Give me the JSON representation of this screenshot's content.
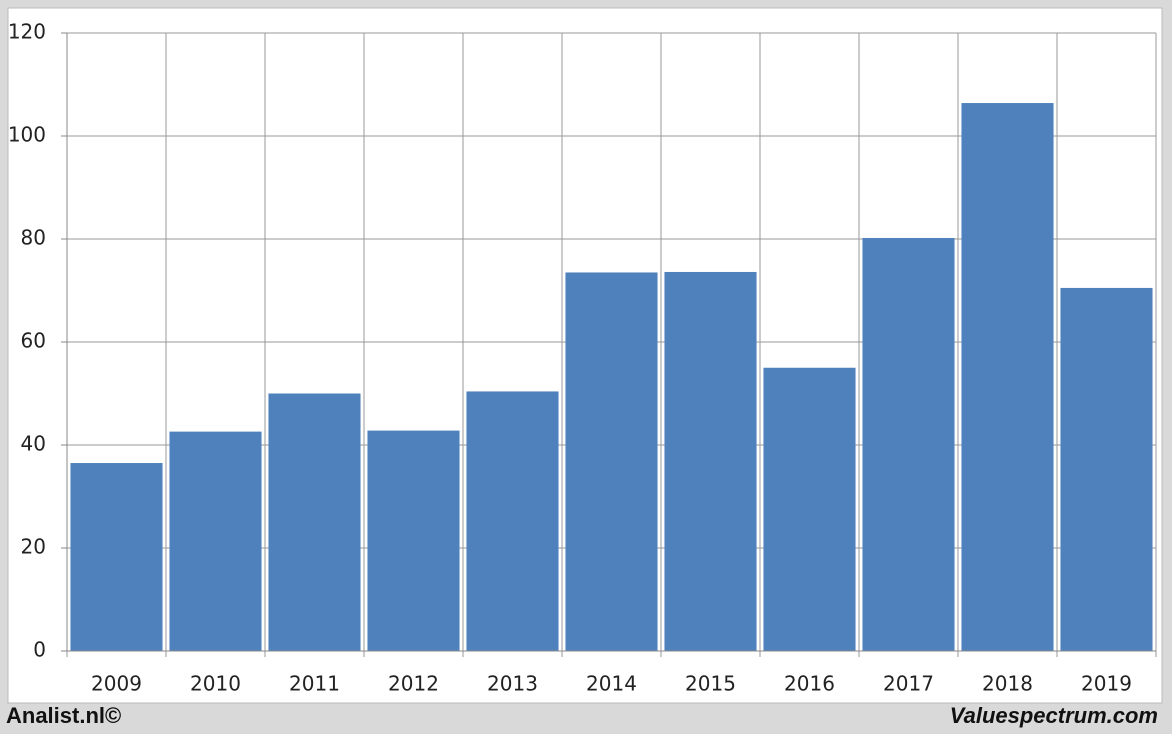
{
  "chart_data": {
    "type": "bar",
    "categories": [
      "2009",
      "2010",
      "2011",
      "2012",
      "2013",
      "2014",
      "2015",
      "2016",
      "2017",
      "2018",
      "2019"
    ],
    "values": [
      36.5,
      42.6,
      50,
      42.8,
      50.4,
      73.5,
      73.6,
      55,
      80.2,
      106.4,
      70.5
    ],
    "color": "#4f81bd",
    "ylim": [
      0,
      120
    ],
    "yticks": [
      0,
      20,
      40,
      60,
      80,
      100,
      120
    ],
    "grid": true,
    "footer_left": "Analist.nl©",
    "footer_right": "Valuespectrum.com"
  }
}
